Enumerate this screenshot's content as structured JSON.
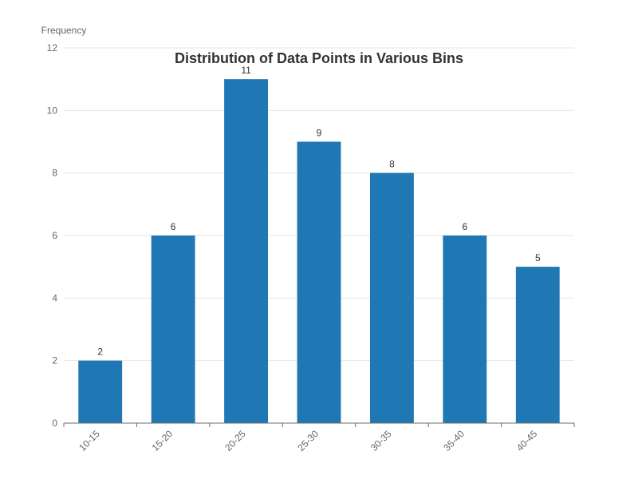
{
  "chart_data": {
    "type": "bar",
    "title": "Distribution of Data Points in Various Bins",
    "xlabel": "",
    "ylabel": "Frequency",
    "categories": [
      "10-15",
      "15-20",
      "20-25",
      "25-30",
      "30-35",
      "35-40",
      "40-45"
    ],
    "series": [
      {
        "values": [
          2,
          6,
          11,
          9,
          8,
          6,
          5
        ]
      }
    ],
    "ylim": [
      0,
      12
    ],
    "yticks": [
      0,
      2,
      4,
      6,
      8,
      10,
      12
    ],
    "grid": true,
    "legend": "none",
    "colors": {
      "bar": "#1f77b4",
      "grid": "#e6e6e6",
      "axis": "#6e6e6e"
    },
    "show_data_labels": true
  }
}
